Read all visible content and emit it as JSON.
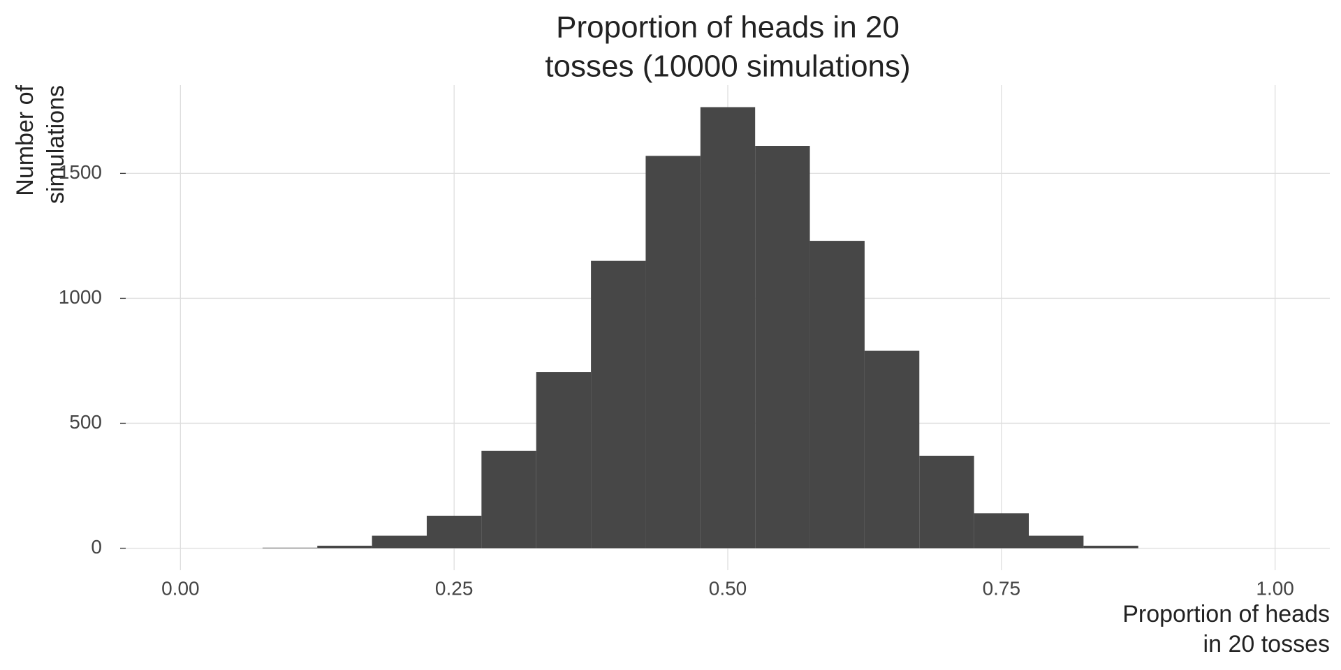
{
  "chart_data": {
    "type": "histogram",
    "title": [
      "Proportion of heads in 20",
      "tosses (10000 simulations)"
    ],
    "x_label": [
      "Proportion of heads",
      "in 20 tosses"
    ],
    "y_label": [
      "Number of",
      "simulations"
    ],
    "bins": [
      0.075,
      0.125,
      0.175,
      0.225,
      0.275,
      0.325,
      0.375,
      0.425,
      0.475,
      0.525,
      0.575,
      0.625,
      0.675,
      0.725,
      0.775,
      0.825,
      0.875
    ],
    "values": [
      2,
      10,
      50,
      130,
      390,
      705,
      1150,
      1570,
      1765,
      1610,
      1230,
      790,
      370,
      140,
      50,
      10
    ],
    "color": "#474747",
    "xlim": [
      -0.05,
      1.05
    ],
    "xticks": [
      {
        "value": 0,
        "label": "0.00"
      },
      {
        "value": 0.25,
        "label": "0.25"
      },
      {
        "value": 0.5,
        "label": "0.50"
      },
      {
        "value": 0.75,
        "label": "0.75"
      },
      {
        "value": 1,
        "label": "1.00"
      }
    ],
    "ylim": [
      -88,
      1853
    ],
    "yticks": [
      0,
      500,
      1000,
      1500
    ],
    "grid": true
  }
}
